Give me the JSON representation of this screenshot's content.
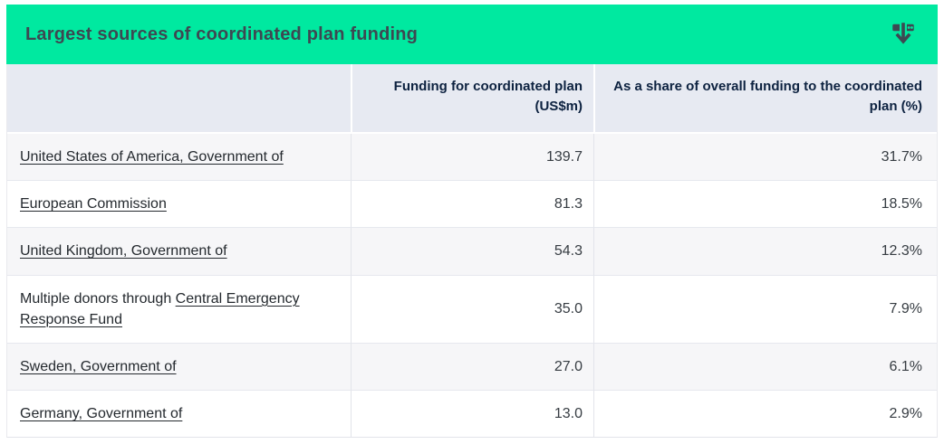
{
  "widget": {
    "title": "Largest sources of coordinated plan funding",
    "download_icon": "download-icon"
  },
  "table": {
    "columns": [
      "",
      "Funding for coordinated plan (US$m)",
      "As a share of overall funding to the coordinated plan (%)"
    ],
    "rows": [
      {
        "source_prefix": "",
        "source_link": "United States of America, Government of",
        "funding": "139.7",
        "share": "31.7%"
      },
      {
        "source_prefix": "",
        "source_link": "European Commission",
        "funding": "81.3",
        "share": "18.5%"
      },
      {
        "source_prefix": "",
        "source_link": "United Kingdom, Government of",
        "funding": "54.3",
        "share": "12.3%"
      },
      {
        "source_prefix": "Multiple donors through ",
        "source_link": "Central Emergency Response Fund",
        "funding": "35.0",
        "share": "7.9%"
      },
      {
        "source_prefix": "",
        "source_link": "Sweden, Government of",
        "funding": "27.0",
        "share": "6.1%"
      },
      {
        "source_prefix": "",
        "source_link": "Germany, Government of",
        "funding": "13.0",
        "share": "2.9%"
      }
    ]
  },
  "chart_data": {
    "type": "table",
    "title": "Largest sources of coordinated plan funding",
    "columns": [
      "",
      "Funding for coordinated plan (US$m)",
      "As a share of overall funding to the coordinated plan (%)"
    ],
    "rows": [
      [
        "United States of America, Government of",
        139.7,
        31.7
      ],
      [
        "European Commission",
        81.3,
        18.5
      ],
      [
        "United Kingdom, Government of",
        54.3,
        12.3
      ],
      [
        "Multiple donors through Central Emergency Response Fund",
        35.0,
        7.9
      ],
      [
        "Sweden, Government of",
        27.0,
        6.1
      ],
      [
        "Germany, Government of",
        13.0,
        2.9
      ]
    ]
  },
  "colors": {
    "accent_green": "#00e9a0",
    "title_text": "#3d4852",
    "column_header_bg": "#e7eaf2",
    "column_header_text": "#0d2240",
    "row_alt_bg": "#f6f6f8",
    "body_text": "#363c42",
    "icon_color": "#3d4852"
  }
}
